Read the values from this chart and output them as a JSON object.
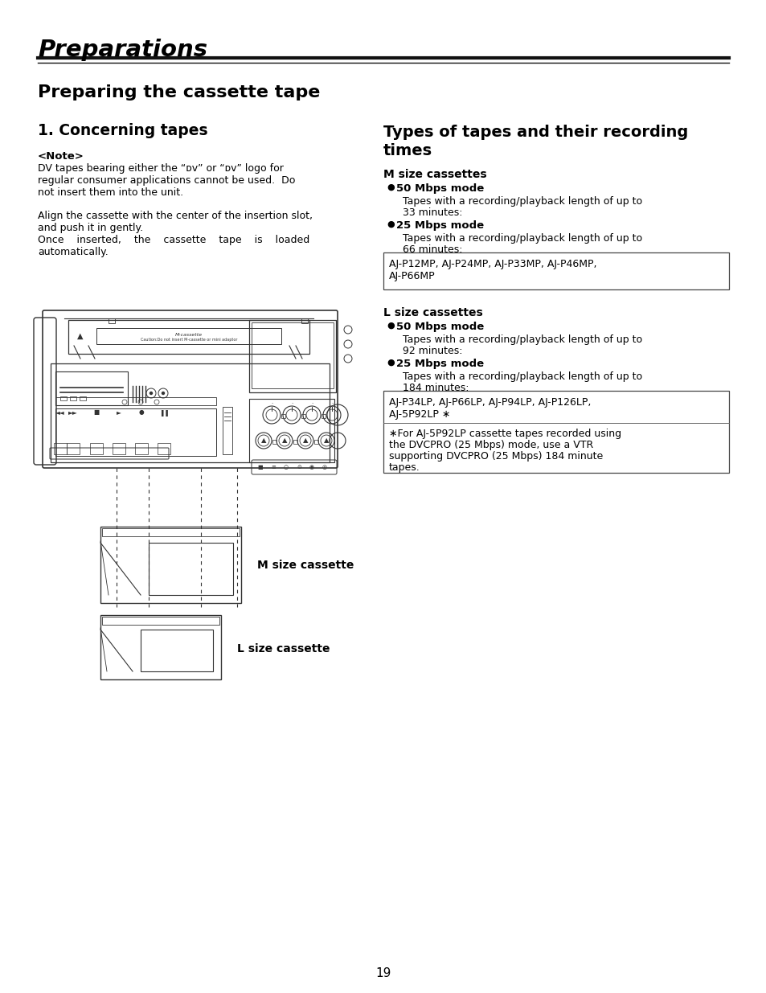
{
  "page_title": "Preparations",
  "section_title": "Preparing the cassette tape",
  "left_heading": "1. Concerning tapes",
  "note_label": "<Note>",
  "right_heading_1": "Types of tapes and their recording",
  "right_heading_2": "times",
  "m_cassette_label": "M size cassette",
  "l_cassette_label": "L size cassette",
  "rc_m_size_header": "M size cassettes",
  "rc_m_50_bold": "50 Mbps mode",
  "rc_m_50_text_1": "Tapes with a recording/playback length of up to",
  "rc_m_50_text_2": "33 minutes:",
  "rc_m_25_bold": "25 Mbps mode",
  "rc_m_25_text_1": "Tapes with a recording/playback length of up to",
  "rc_m_25_text_2": "66 minutes:",
  "rc_m_box_1": "AJ-P12MP, AJ-P24MP, AJ-P33MP, AJ-P46MP,",
  "rc_m_box_2": "AJ-P66MP",
  "rc_l_size_header": "L size cassettes",
  "rc_l_50_bold": "50 Mbps mode",
  "rc_l_50_text_1": "Tapes with a recording/playback length of up to",
  "rc_l_50_text_2": "92 minutes:",
  "rc_l_25_bold": "25 Mbps mode",
  "rc_l_25_text_1": "Tapes with a recording/playback length of up to",
  "rc_l_25_text_2": "184 minutes:",
  "rc_l_box_1": "AJ-P34LP, AJ-P66LP, AJ-P94LP, AJ-P126LP,",
  "rc_l_box_2": "AJ-5P92LP ∗",
  "rc_l_note_1": "∗For AJ-5P92LP cassette tapes recorded using",
  "rc_l_note_2": "the DVCPRO (25 Mbps) mode, use a VTR",
  "rc_l_note_3": "supporting DVCPRO (25 Mbps) 184 minute",
  "rc_l_note_4": "tapes.",
  "page_number": "19",
  "bg_color": "#ffffff",
  "text_color": "#000000",
  "line_color": "#1a1a1a",
  "draw_color": "#333333"
}
